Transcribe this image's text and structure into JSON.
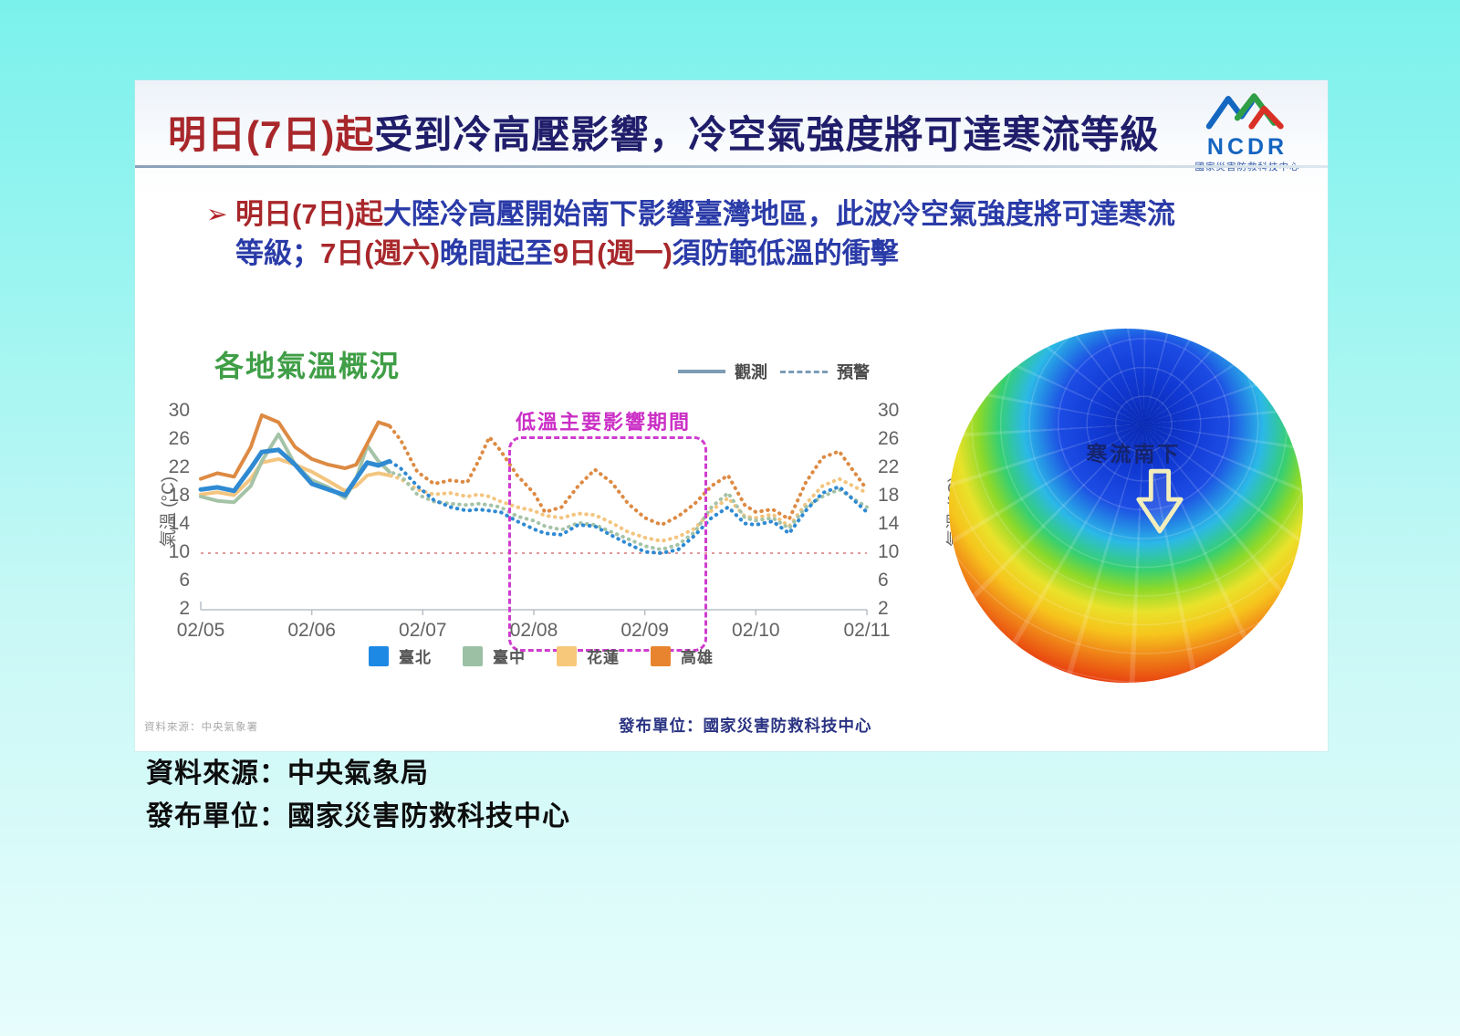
{
  "slide": {
    "title_segments": [
      {
        "text": "明日(7日)起",
        "color": "red"
      },
      {
        "text": "受到冷高壓影響，冷空氣強度將可達寒流等級",
        "color": "navy"
      }
    ],
    "logo": {
      "acronym": "NCDR",
      "org": "國家災害防救科技中心"
    },
    "bullet": {
      "marker": "➢",
      "line1": [
        {
          "text": "明日(7日)起",
          "color": "red"
        },
        {
          "text": "大陸冷高壓開始南下影響臺灣地區，此波冷空氣強度將可達寒流",
          "color": "blue"
        }
      ],
      "line2": [
        {
          "text": "等級；",
          "color": "blue"
        },
        {
          "text": "7日(週六)",
          "color": "red"
        },
        {
          "text": "晚間起至",
          "color": "blue"
        },
        {
          "text": "9日(週一)",
          "color": "red"
        },
        {
          "text": "須防範低溫的衝擊",
          "color": "blue"
        }
      ]
    },
    "footer_source": "資料來源：中央氣象署",
    "footer_publisher": "發布單位：國家災害防救科技中心"
  },
  "chart_data": {
    "type": "line",
    "title": "各地氣溫概況",
    "ylabel": "氣溫 (°C)",
    "x_unit": "days_from_02/05",
    "xlim": [
      0,
      6
    ],
    "ylim": [
      2,
      30
    ],
    "y_ticks": [
      30,
      26,
      22,
      18,
      14,
      10,
      6,
      2
    ],
    "x_tick_labels": [
      "02/05",
      "02/06",
      "02/07",
      "02/08",
      "02/09",
      "02/10",
      "02/11"
    ],
    "grid": false,
    "line_legend": [
      {
        "label": "觀測",
        "style": "solid"
      },
      {
        "label": "預警",
        "style": "dashed"
      }
    ],
    "observed_until": 1.65,
    "threshold_line": {
      "value": 10,
      "color": "#e09a9a",
      "style": "dotted"
    },
    "highlight_box": {
      "label": "低溫主要影響期間",
      "x0": 2.77,
      "x1": 4.56,
      "y_top": 26.5,
      "color": "#cf3ccf"
    },
    "x": [
      0,
      0.15,
      0.3,
      0.45,
      0.55,
      0.7,
      0.85,
      1.0,
      1.15,
      1.3,
      1.4,
      1.5,
      1.6,
      1.7,
      1.8,
      1.95,
      2.1,
      2.25,
      2.4,
      2.5,
      2.6,
      2.7,
      2.85,
      3.0,
      3.1,
      3.25,
      3.4,
      3.55,
      3.7,
      3.85,
      4.0,
      4.15,
      4.3,
      4.45,
      4.6,
      4.75,
      4.9,
      5.0,
      5.15,
      5.3,
      5.45,
      5.6,
      5.75,
      6.0
    ],
    "series": [
      {
        "name": "臺北",
        "key": "taipei",
        "color": "#2f8ad2",
        "swatch": "#1e88e5",
        "values": [
          19.0,
          19.3,
          18.8,
          22.0,
          24.3,
          24.6,
          22.5,
          19.8,
          19.0,
          18.2,
          20.5,
          22.8,
          22.4,
          23.0,
          22.0,
          19.5,
          17.5,
          16.5,
          16.0,
          16.2,
          16.0,
          15.8,
          14.5,
          13.4,
          12.8,
          12.6,
          14.0,
          13.8,
          12.5,
          11.3,
          10.2,
          10.0,
          10.5,
          12.5,
          15.0,
          16.5,
          14.2,
          14.0,
          14.5,
          12.8,
          16.0,
          18.5,
          19.4,
          15.8
        ]
      },
      {
        "name": "臺中",
        "key": "taichung",
        "color": "#a5c3a7",
        "swatch": "#9cc0a4",
        "values": [
          18.0,
          17.4,
          17.2,
          19.5,
          23.0,
          26.8,
          22.5,
          20.3,
          19.3,
          17.8,
          20.5,
          25.2,
          23.0,
          21.5,
          21.0,
          18.3,
          17.3,
          17.0,
          16.8,
          17.0,
          16.8,
          16.5,
          15.2,
          14.6,
          13.8,
          13.3,
          14.3,
          14.0,
          13.0,
          12.0,
          11.0,
          10.5,
          11.2,
          13.0,
          16.5,
          18.5,
          15.0,
          14.6,
          15.0,
          13.5,
          16.5,
          18.0,
          19.0,
          16.5
        ]
      },
      {
        "name": "花蓮",
        "key": "hualien",
        "color": "#f3c57f",
        "swatch": "#f8c87a",
        "values": [
          18.3,
          18.6,
          18.2,
          20.5,
          22.8,
          23.3,
          22.5,
          21.5,
          20.2,
          18.8,
          19.5,
          21.0,
          21.3,
          21.0,
          20.5,
          19.0,
          18.3,
          18.5,
          18.0,
          18.3,
          18.0,
          17.3,
          16.5,
          16.0,
          15.3,
          15.0,
          15.6,
          15.4,
          14.3,
          13.0,
          12.2,
          11.7,
          12.3,
          13.5,
          16.0,
          17.8,
          15.2,
          15.0,
          15.5,
          13.8,
          17.0,
          19.5,
          20.5,
          18.5
        ]
      },
      {
        "name": "高雄",
        "key": "kaohsiung",
        "color": "#dd8a43",
        "swatch": "#e8842f",
        "values": [
          20.5,
          21.3,
          20.8,
          25.0,
          29.5,
          28.5,
          25.0,
          23.3,
          22.5,
          22.0,
          22.5,
          25.5,
          28.5,
          28.0,
          26.0,
          21.5,
          19.8,
          20.3,
          20.0,
          23.0,
          26.4,
          24.5,
          21.0,
          18.5,
          15.8,
          16.5,
          19.5,
          21.8,
          20.0,
          17.0,
          15.0,
          14.0,
          15.2,
          17.0,
          19.5,
          21.0,
          16.8,
          15.8,
          16.2,
          14.8,
          20.0,
          23.5,
          24.4,
          19.0
        ]
      }
    ]
  },
  "globe": {
    "label": "寒流南下"
  },
  "caption": {
    "line1": "資料來源：中央氣象局",
    "line2": "發布單位：國家災害防救科技中心"
  },
  "colors": {
    "page_bg_top": "#7bf1ec",
    "page_bg_bottom": "#e6fdfc",
    "title_red": "#a8272b",
    "title_navy": "#201e6b",
    "bullet_blue": "#2a3ba8",
    "chart_title_green": "#3f9e46",
    "legend_line_gray": "#7d9cb5",
    "highlight_magenta": "#cf3ccf"
  }
}
